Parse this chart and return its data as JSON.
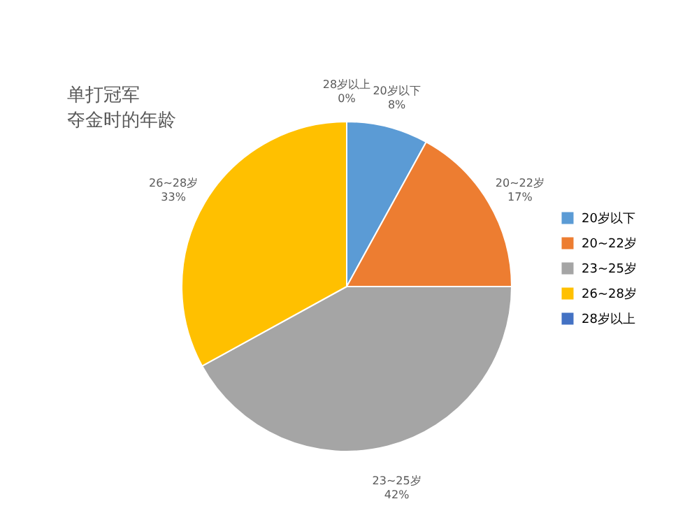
{
  "chart_data": {
    "type": "pie",
    "title": "单打冠军夺金时的年龄",
    "categories": [
      "20岁以下",
      "20~22岁",
      "23~25岁",
      "26~28岁",
      "28岁以上"
    ],
    "values": [
      8,
      17,
      42,
      33,
      0
    ],
    "value_labels": [
      "8%",
      "17%",
      "42%",
      "33%",
      "0%"
    ],
    "colors": [
      "#5b9bd5",
      "#ed7d31",
      "#a5a5a5",
      "#ffc000",
      "#4472c4"
    ],
    "legend": "right"
  }
}
